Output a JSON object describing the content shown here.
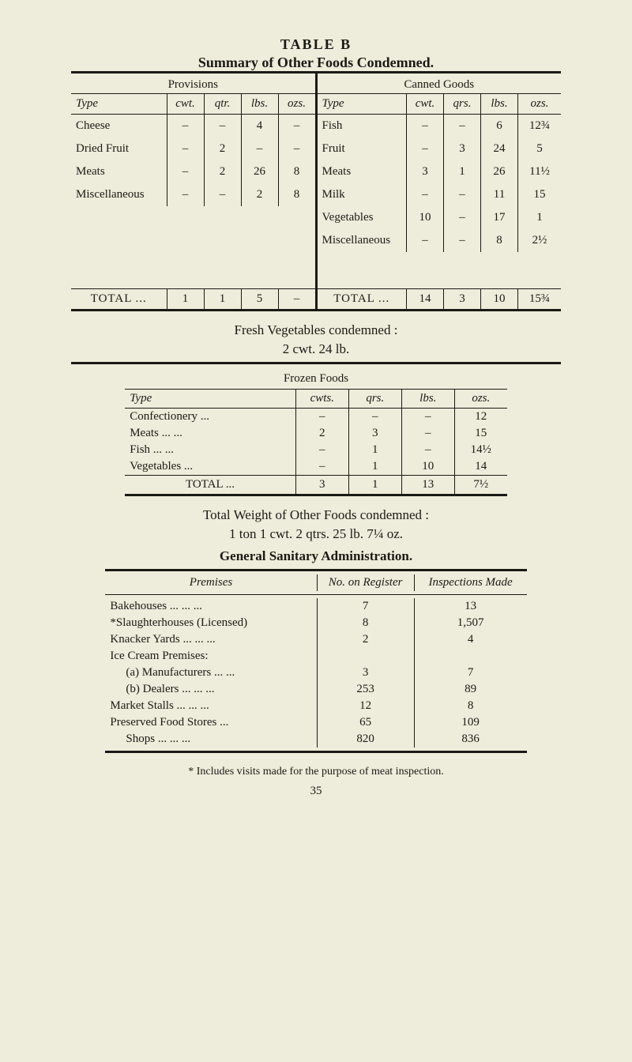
{
  "table_b": {
    "cap": "TABLE B",
    "subtitle": "Summary of Other Foods Condemned.",
    "left": {
      "pane_head": "Provisions",
      "columns": [
        "Type",
        "cwt.",
        "qtr.",
        "lbs.",
        "ozs."
      ],
      "rows": [
        {
          "type": "Cheese",
          "cwt": "–",
          "b": "–",
          "c": "4",
          "d": "–"
        },
        {
          "type": "Dried Fruit",
          "cwt": "–",
          "b": "2",
          "c": "–",
          "d": "–"
        },
        {
          "type": "Meats",
          "cwt": "–",
          "b": "2",
          "c": "26",
          "d": "8"
        },
        {
          "type": "Miscellaneous",
          "cwt": "–",
          "b": "–",
          "c": "2",
          "d": "8"
        }
      ],
      "total_label": "TOTAL ...",
      "total": {
        "cwt": "1",
        "b": "1",
        "c": "5",
        "d": "–"
      }
    },
    "right": {
      "pane_head": "Canned Goods",
      "columns": [
        "Type",
        "cwt.",
        "qrs.",
        "lbs.",
        "ozs."
      ],
      "rows": [
        {
          "type": "Fish",
          "cwt": "–",
          "b": "–",
          "c": "6",
          "d": "12¾"
        },
        {
          "type": "Fruit",
          "cwt": "–",
          "b": "3",
          "c": "24",
          "d": "5"
        },
        {
          "type": "Meats",
          "cwt": "3",
          "b": "1",
          "c": "26",
          "d": "11½"
        },
        {
          "type": "Milk",
          "cwt": "–",
          "b": "–",
          "c": "11",
          "d": "15"
        },
        {
          "type": "Vegetables",
          "cwt": "10",
          "b": "–",
          "c": "17",
          "d": "1"
        },
        {
          "type": "Miscellaneous",
          "cwt": "–",
          "b": "–",
          "c": "8",
          "d": "2½"
        }
      ],
      "total_label": "TOTAL ...",
      "total": {
        "cwt": "14",
        "b": "3",
        "c": "10",
        "d": "15¾"
      }
    }
  },
  "fresh_veg": {
    "line1": "Fresh Vegetables condemned :",
    "line2": "2 cwt. 24 lb."
  },
  "frozen": {
    "title": "Frozen Foods",
    "columns": [
      "Type",
      "cwts.",
      "qrs.",
      "lbs.",
      "ozs."
    ],
    "rows": [
      {
        "type": "Confectionery ...",
        "a": "–",
        "b": "–",
        "c": "–",
        "d": "12"
      },
      {
        "type": "Meats ... ...",
        "a": "2",
        "b": "3",
        "c": "–",
        "d": "15"
      },
      {
        "type": "Fish ... ...",
        "a": "–",
        "b": "1",
        "c": "–",
        "d": "14½"
      },
      {
        "type": "Vegetables ...",
        "a": "–",
        "b": "1",
        "c": "10",
        "d": "14"
      }
    ],
    "total_label": "TOTAL ...",
    "total": {
      "a": "3",
      "b": "1",
      "c": "13",
      "d": "7½"
    }
  },
  "total_weight": {
    "line1": "Total Weight of Other Foods condemned :",
    "line2": "1 ton 1 cwt. 2 qtrs. 25 lb. 7¼ oz."
  },
  "gen_san": {
    "heading": "General Sanitary Administration.",
    "columns": [
      "Premises",
      "No. on Register",
      "Inspections Made"
    ],
    "rows": [
      {
        "p": "Bakehouses ... ... ...",
        "a": "7",
        "b": "13",
        "indent": false
      },
      {
        "p": "*Slaughterhouses (Licensed)",
        "a": "8",
        "b": "1,507",
        "indent": false
      },
      {
        "p": "Knacker Yards ... ... ...",
        "a": "2",
        "b": "4",
        "indent": false
      },
      {
        "p": "Ice Cream Premises:",
        "a": "",
        "b": "",
        "indent": false
      },
      {
        "p": "(a) Manufacturers ... ...",
        "a": "3",
        "b": "7",
        "indent": true
      },
      {
        "p": "(b) Dealers ... ... ...",
        "a": "253",
        "b": "89",
        "indent": true
      },
      {
        "p": "Market Stalls ... ... ...",
        "a": "12",
        "b": "8",
        "indent": false
      },
      {
        "p": "Preserved Food Stores ...",
        "a": "65",
        "b": "109",
        "indent": false
      },
      {
        "p": "Shops ... ... ...",
        "a": "820",
        "b": "836",
        "indent": true
      }
    ],
    "footnote": "* Includes visits made for the purpose of meat inspection."
  },
  "page_num": "35"
}
